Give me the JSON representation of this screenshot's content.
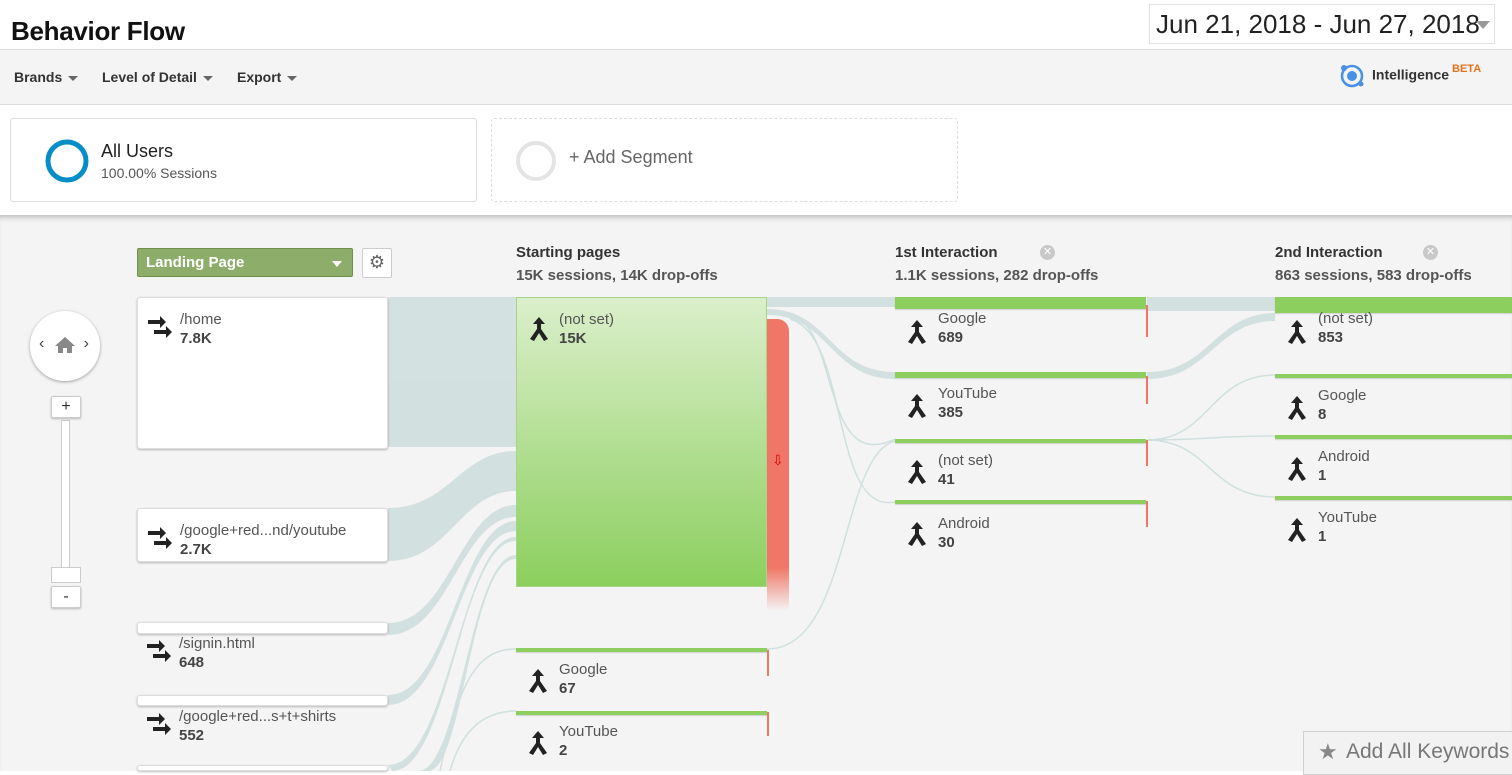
{
  "header": {
    "title": "Behavior Flow",
    "date_range": "Jun 21, 2018 - Jun 27, 2018"
  },
  "toolbar": {
    "brands": "Brands",
    "level_of_detail": "Level of Detail",
    "export": "Export",
    "intelligence": "Intelligence",
    "intelligence_badge": "BETA"
  },
  "segments": {
    "all_users": {
      "name": "All Users",
      "sub": "100.00% Sessions"
    },
    "add_segment": "+ Add Segment"
  },
  "flow": {
    "dimension_select": "Landing Page",
    "columns": {
      "starting": {
        "title": "Starting pages",
        "stats": "15K sessions, 14K drop-offs"
      },
      "first": {
        "title": "1st Interaction",
        "stats": "1.1K sessions, 282 drop-offs"
      },
      "second": {
        "title": "2nd Interaction",
        "stats": "863 sessions, 583 drop-offs"
      }
    },
    "landing_pages": [
      {
        "label": "/home",
        "value": "7.8K"
      },
      {
        "label": "/google+red...nd/youtube",
        "value": "2.7K"
      },
      {
        "label": "/signin.html",
        "value": "648"
      },
      {
        "label": "/google+red...s+t+shirts",
        "value": "552"
      }
    ],
    "starting_pages": [
      {
        "label": "(not set)",
        "value": "15K"
      },
      {
        "label": "Google",
        "value": "67"
      },
      {
        "label": "YouTube",
        "value": "2"
      }
    ],
    "first_interaction": [
      {
        "label": "Google",
        "value": "689"
      },
      {
        "label": "YouTube",
        "value": "385"
      },
      {
        "label": "(not set)",
        "value": "41"
      },
      {
        "label": "Android",
        "value": "30"
      }
    ],
    "second_interaction": [
      {
        "label": "(not set)",
        "value": "853"
      },
      {
        "label": "Google",
        "value": "8"
      },
      {
        "label": "Android",
        "value": "1"
      },
      {
        "label": "YouTube",
        "value": "1"
      }
    ],
    "zoom_in": "+",
    "zoom_out": "-"
  },
  "add_keywords": "Add All Keywords",
  "colors": {
    "node_green": "#8ccf5e",
    "drop_red": "#f07767",
    "flow_gray": "#d2dfdf",
    "select_green": "#8dae6a",
    "accent_orange": "#e8711c"
  },
  "icons": {
    "landing": "entrance-arrow-icon",
    "page": "branch-merge-icon",
    "intelligence": "intelligence-icon",
    "settings": "gear-icon",
    "home": "home-icon",
    "star": "star-icon"
  }
}
